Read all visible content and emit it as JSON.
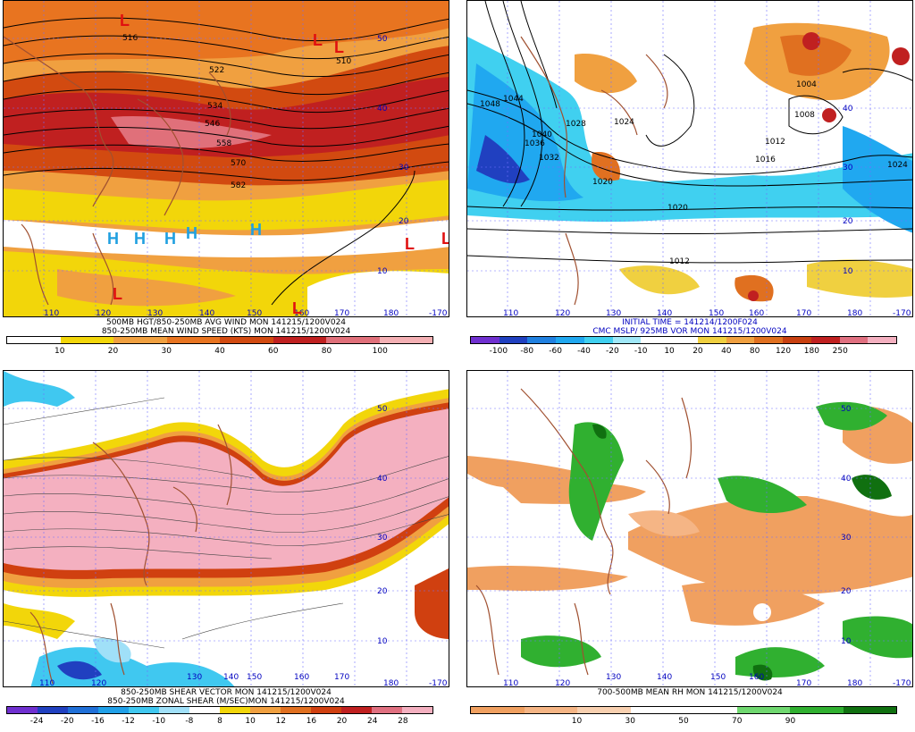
{
  "panels": [
    {
      "id": "tl",
      "caption_lines": [
        "500MB HGT/850-250MB AVG WIND MON 141215/1200V024",
        "850-250MB MEAN WIND SPEED (KTS) MON 141215/1200V024"
      ],
      "colorbar_colors": [
        "#ffffff",
        "#f2d60a",
        "#f0a040",
        "#e87420",
        "#d24a10",
        "#c02020",
        "#e0707a",
        "#f4b0b4"
      ],
      "colorbar_labels": [
        "10",
        "20",
        "30",
        "40",
        "60",
        "80",
        "100"
      ],
      "lon_labels": [
        "110",
        "120",
        "130",
        "140",
        "150",
        "160",
        "170",
        "180",
        "-170"
      ],
      "lat_labels": [
        "50",
        "40",
        "30",
        "20",
        "10"
      ],
      "contour_labels": [
        "516",
        "510",
        "522",
        "534",
        "546",
        "558",
        "570",
        "582"
      ],
      "symbols": [
        {
          "t": "L",
          "c": "#e01010"
        },
        {
          "t": "L",
          "c": "#e01010"
        },
        {
          "t": "L",
          "c": "#e01010"
        },
        {
          "t": "L",
          "c": "#e01010"
        },
        {
          "t": "L",
          "c": "#e01010"
        },
        {
          "t": "L",
          "c": "#e01010"
        },
        {
          "t": "L",
          "c": "#e01010"
        },
        {
          "t": "H",
          "c": "#20a0e0"
        },
        {
          "t": "H",
          "c": "#20a0e0"
        },
        {
          "t": "H",
          "c": "#20a0e0"
        },
        {
          "t": "H",
          "c": "#20a0e0"
        },
        {
          "t": "H",
          "c": "#20a0e0"
        }
      ]
    },
    {
      "id": "tr",
      "caption_lines": [
        "INITIAL TIME = 141214/1200F024",
        "CMC MSLP/ 925MB VOR MON 141215/1200V024"
      ],
      "colorbar_colors": [
        "#7030d0",
        "#2040c0",
        "#2080e0",
        "#20a8f0",
        "#40d0f0",
        "#a0e8f8",
        "#ffffff",
        "#ffffff",
        "#f0d040",
        "#f0a040",
        "#e07020",
        "#c84010",
        "#c02020",
        "#e07080",
        "#f4b0c0"
      ],
      "colorbar_labels": [
        "-100",
        "-80",
        "-60",
        "-40",
        "-20",
        "-10",
        "10",
        "20",
        "40",
        "80",
        "120",
        "180",
        "250"
      ],
      "lon_labels": [
        "110",
        "120",
        "130",
        "140",
        "150",
        "160",
        "170",
        "180",
        "-170"
      ],
      "lat_labels": [
        "40",
        "30",
        "20",
        "10"
      ],
      "contour_labels": [
        "1048",
        "1044",
        "1040",
        "1036",
        "1032",
        "1028",
        "1024",
        "1020",
        "1016",
        "1012",
        "1008",
        "1004",
        "1020",
        "1024",
        "1012"
      ]
    },
    {
      "id": "bl",
      "caption_lines": [
        "850-250MB SHEAR VECTOR MON 141215/1200V024",
        "850-250MB ZONAL SHEAR (M/SEC)MON 141215/1200V024"
      ],
      "colorbar_colors": [
        "#7030d0",
        "#2040c0",
        "#2070d8",
        "#20a0e8",
        "#40c8f0",
        "#a0e0f8",
        "#ffffff",
        "#f2d60a",
        "#f0a040",
        "#e07020",
        "#d04010",
        "#c02020",
        "#e07080",
        "#f4b0c0"
      ],
      "colorbar_labels": [
        "-24",
        "-20",
        "-16",
        "-12",
        "-10",
        "-8",
        "8",
        "10",
        "12",
        "16",
        "20",
        "24",
        "28"
      ],
      "lon_labels": [
        "110",
        "120",
        "130",
        "140",
        "150",
        "160",
        "170",
        "180",
        "-170"
      ],
      "lat_labels": [
        "50",
        "40",
        "30",
        "20",
        "10"
      ]
    },
    {
      "id": "br",
      "caption_lines": [
        "700-500MB MEAN RH MON 141215/1200V024"
      ],
      "colorbar_colors": [
        "#f0a060",
        "#f5b585",
        "#f8d0b0",
        "#ffffff",
        "#ffffff",
        "#70d870",
        "#30b030",
        "#107010"
      ],
      "colorbar_labels": [
        "10",
        "30",
        "50",
        "70",
        "90"
      ],
      "lon_labels": [
        "110",
        "120",
        "130",
        "140",
        "150",
        "160",
        "170",
        "180",
        "-170"
      ],
      "lat_labels": [
        "50",
        "40",
        "30",
        "20",
        "10"
      ]
    }
  ]
}
